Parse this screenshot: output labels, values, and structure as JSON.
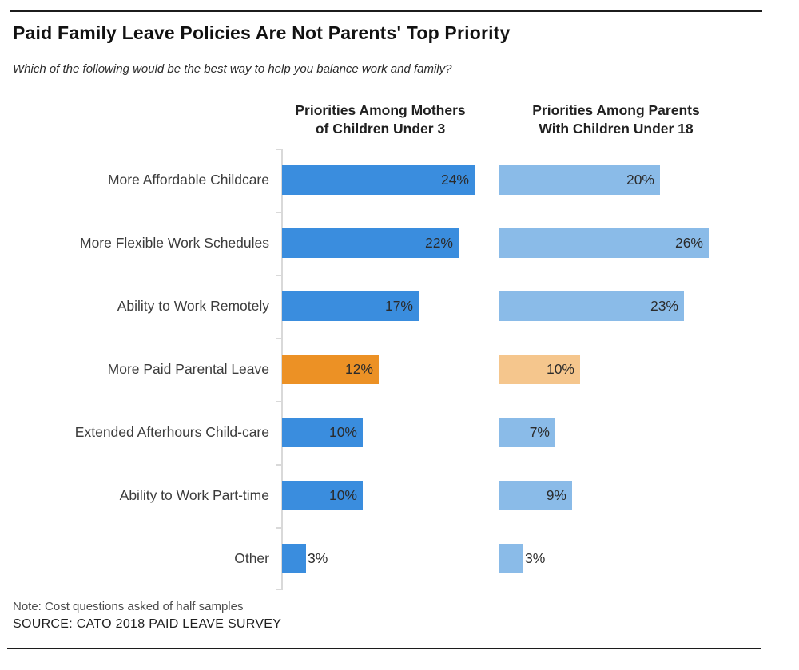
{
  "header": {
    "title": "Paid Family Leave Policies Are Not Parents' Top Priority",
    "subtitle": "Which of the following would be the best way to help you balance work and family?"
  },
  "columns": {
    "mothers": {
      "title": "Priorities Among Mothers\nof Children Under 3"
    },
    "parents": {
      "title": "Priorities Among Parents\nWith Children Under 18"
    }
  },
  "chart_data": {
    "type": "bar",
    "orientation": "horizontal",
    "categories": [
      "More Affordable Childcare",
      "More Flexible Work Schedules",
      "Ability to Work Remotely",
      "More Paid Parental Leave",
      "Extended Afterhours Child-care",
      "Ability to Work Part-time",
      "Other"
    ],
    "series": [
      {
        "name": "Priorities Among Mothers of Children Under 3",
        "values": [
          24,
          22,
          17,
          12,
          10,
          10,
          3
        ]
      },
      {
        "name": "Priorities Among Parents With Children Under 18",
        "values": [
          20,
          26,
          23,
          10,
          7,
          9,
          3
        ]
      }
    ],
    "highlight_category": "More Paid Parental Leave",
    "value_suffix": "%",
    "xlim": [
      0,
      27
    ],
    "grid": false,
    "legend": "none",
    "value_labels": "inside-end, outside-end when bar too short"
  },
  "colors": {
    "primary": "#3a8dde",
    "primary_light": "#8abbe8",
    "highlight": "#ec9125",
    "highlight_light": "#f5c68d",
    "axis": "#d9d9d9",
    "rule": "#1c1c1c"
  },
  "footer": {
    "note": "Note: Cost questions asked of half samples",
    "source": "SOURCE: CATO 2018 PAID LEAVE SURVEY"
  }
}
